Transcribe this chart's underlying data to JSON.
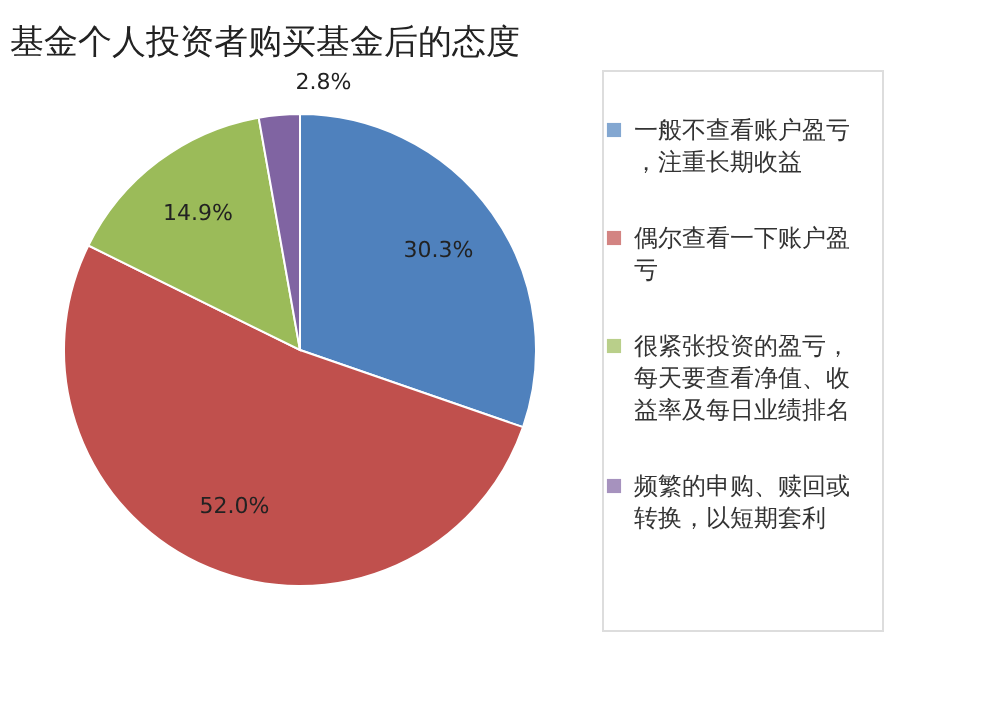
{
  "chart_data": {
    "type": "pie",
    "title": "基金个人投资者购买基金后的态度",
    "categories": [
      "一般不查看账户盈亏，注重长期收益",
      "偶尔查看一下账户盈亏",
      "很紧张投资的盈亏，每天要查看净值、收益率及每日业绩排名",
      "频繁的申购、赎回或转换，以短期套利"
    ],
    "values": [
      30.3,
      52.0,
      14.9,
      2.8
    ],
    "colors": [
      "#4f81bd",
      "#c0504d",
      "#9bbb59",
      "#8064a2"
    ],
    "value_labels": [
      "30.3%",
      "52.0%",
      "14.9%",
      "2.8%"
    ],
    "legend": "right"
  }
}
